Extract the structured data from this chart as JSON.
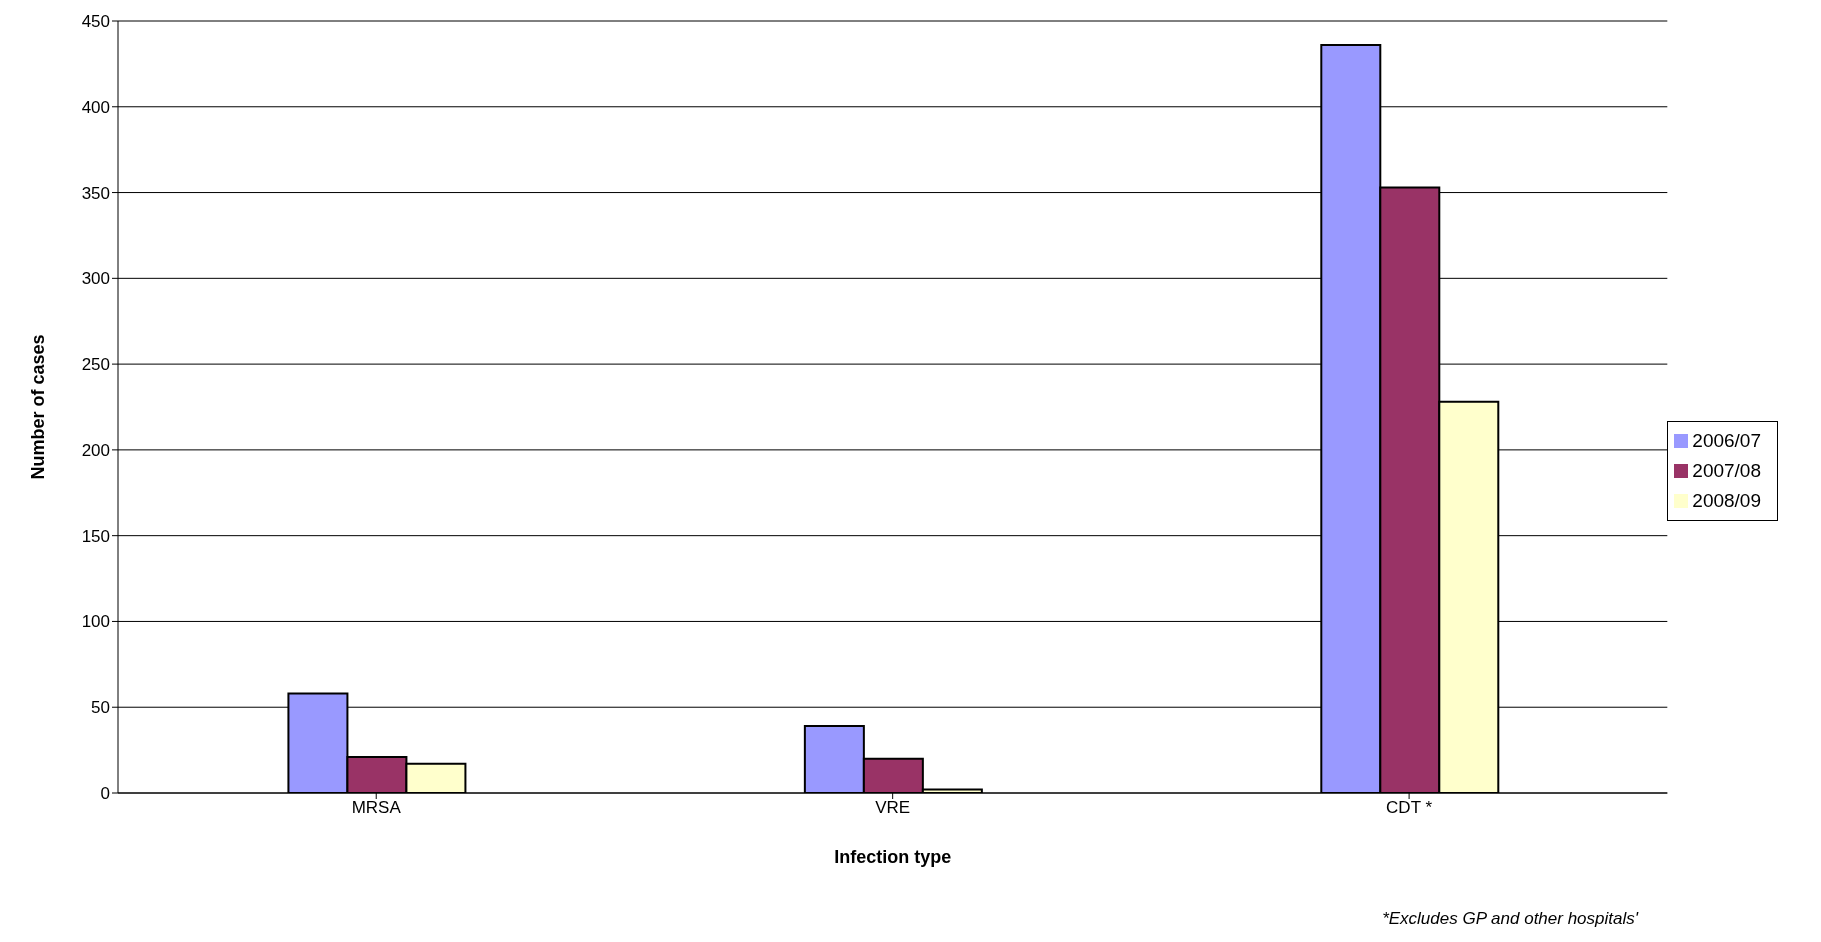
{
  "chart_data": {
    "type": "bar",
    "xlabel": "Infection type",
    "ylabel": "Number of cases",
    "categories": [
      "MRSA",
      "VRE",
      "CDT  *"
    ],
    "series": [
      {
        "name": "2006/07",
        "color": "#9999ff",
        "values": [
          58,
          39,
          436
        ]
      },
      {
        "name": "2007/08",
        "color": "#993366",
        "values": [
          21,
          20,
          353
        ]
      },
      {
        "name": "2008/09",
        "color": "#ffffcc",
        "values": [
          17,
          2,
          228
        ]
      }
    ],
    "ylim": [
      0,
      450
    ],
    "yticks": [
      0,
      50,
      100,
      150,
      200,
      250,
      300,
      350,
      400,
      450
    ],
    "grid": "y",
    "legend": "right",
    "annotations": [
      "*Excludes GP and other hospitals'"
    ]
  }
}
